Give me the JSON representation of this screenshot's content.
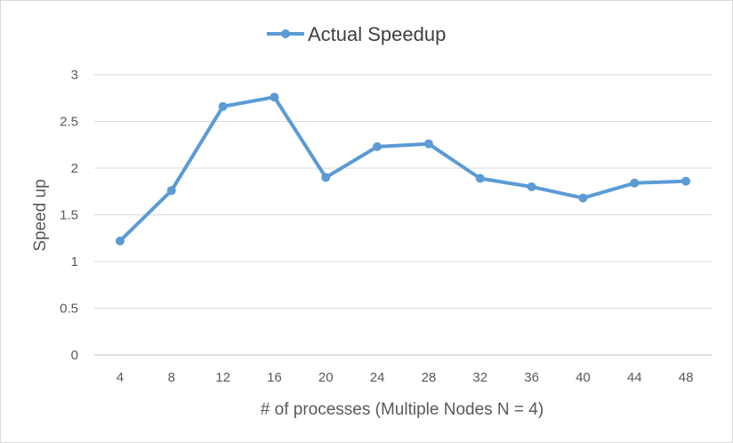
{
  "chart_data": {
    "type": "line",
    "title": "",
    "xlabel": "# of processes (Multiple Nodes N = 4)",
    "ylabel": "Speed up",
    "categories": [
      "4",
      "8",
      "12",
      "16",
      "20",
      "24",
      "28",
      "32",
      "36",
      "40",
      "44",
      "48"
    ],
    "series": [
      {
        "name": "Actual Speedup",
        "color": "#5b9bd5",
        "values": [
          1.22,
          1.76,
          2.66,
          2.76,
          1.9,
          2.23,
          2.26,
          1.89,
          1.8,
          1.68,
          1.84,
          1.86
        ]
      }
    ],
    "ylim": [
      0,
      3
    ],
    "yticks": [
      "0",
      "0.5",
      "1",
      "1.5",
      "2",
      "2.5",
      "3"
    ],
    "grid": true,
    "legend": "top-center"
  }
}
